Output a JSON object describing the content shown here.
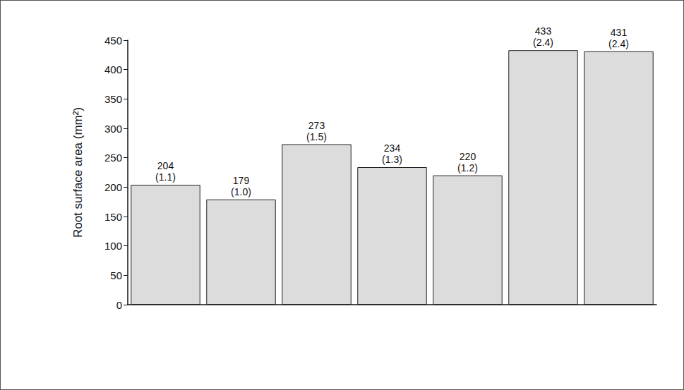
{
  "chart_data": {
    "type": "bar",
    "categories": [
      null,
      null,
      null,
      null,
      null,
      null,
      null
    ],
    "values": [
      204,
      179,
      273,
      234,
      220,
      433,
      431
    ],
    "ratio_labels": [
      "(1.1)",
      "(1.0)",
      "(1.5)",
      "(1.3)",
      "(1.2)",
      "(2.4)",
      "(2.4)"
    ],
    "data_labels": true,
    "ylabel": "Root surface area (mm²)",
    "ylim": [
      0,
      450
    ],
    "yticks": [
      0,
      50,
      100,
      150,
      200,
      250,
      300,
      350,
      400,
      450
    ],
    "color": "#dcdcdc",
    "grid": false
  }
}
